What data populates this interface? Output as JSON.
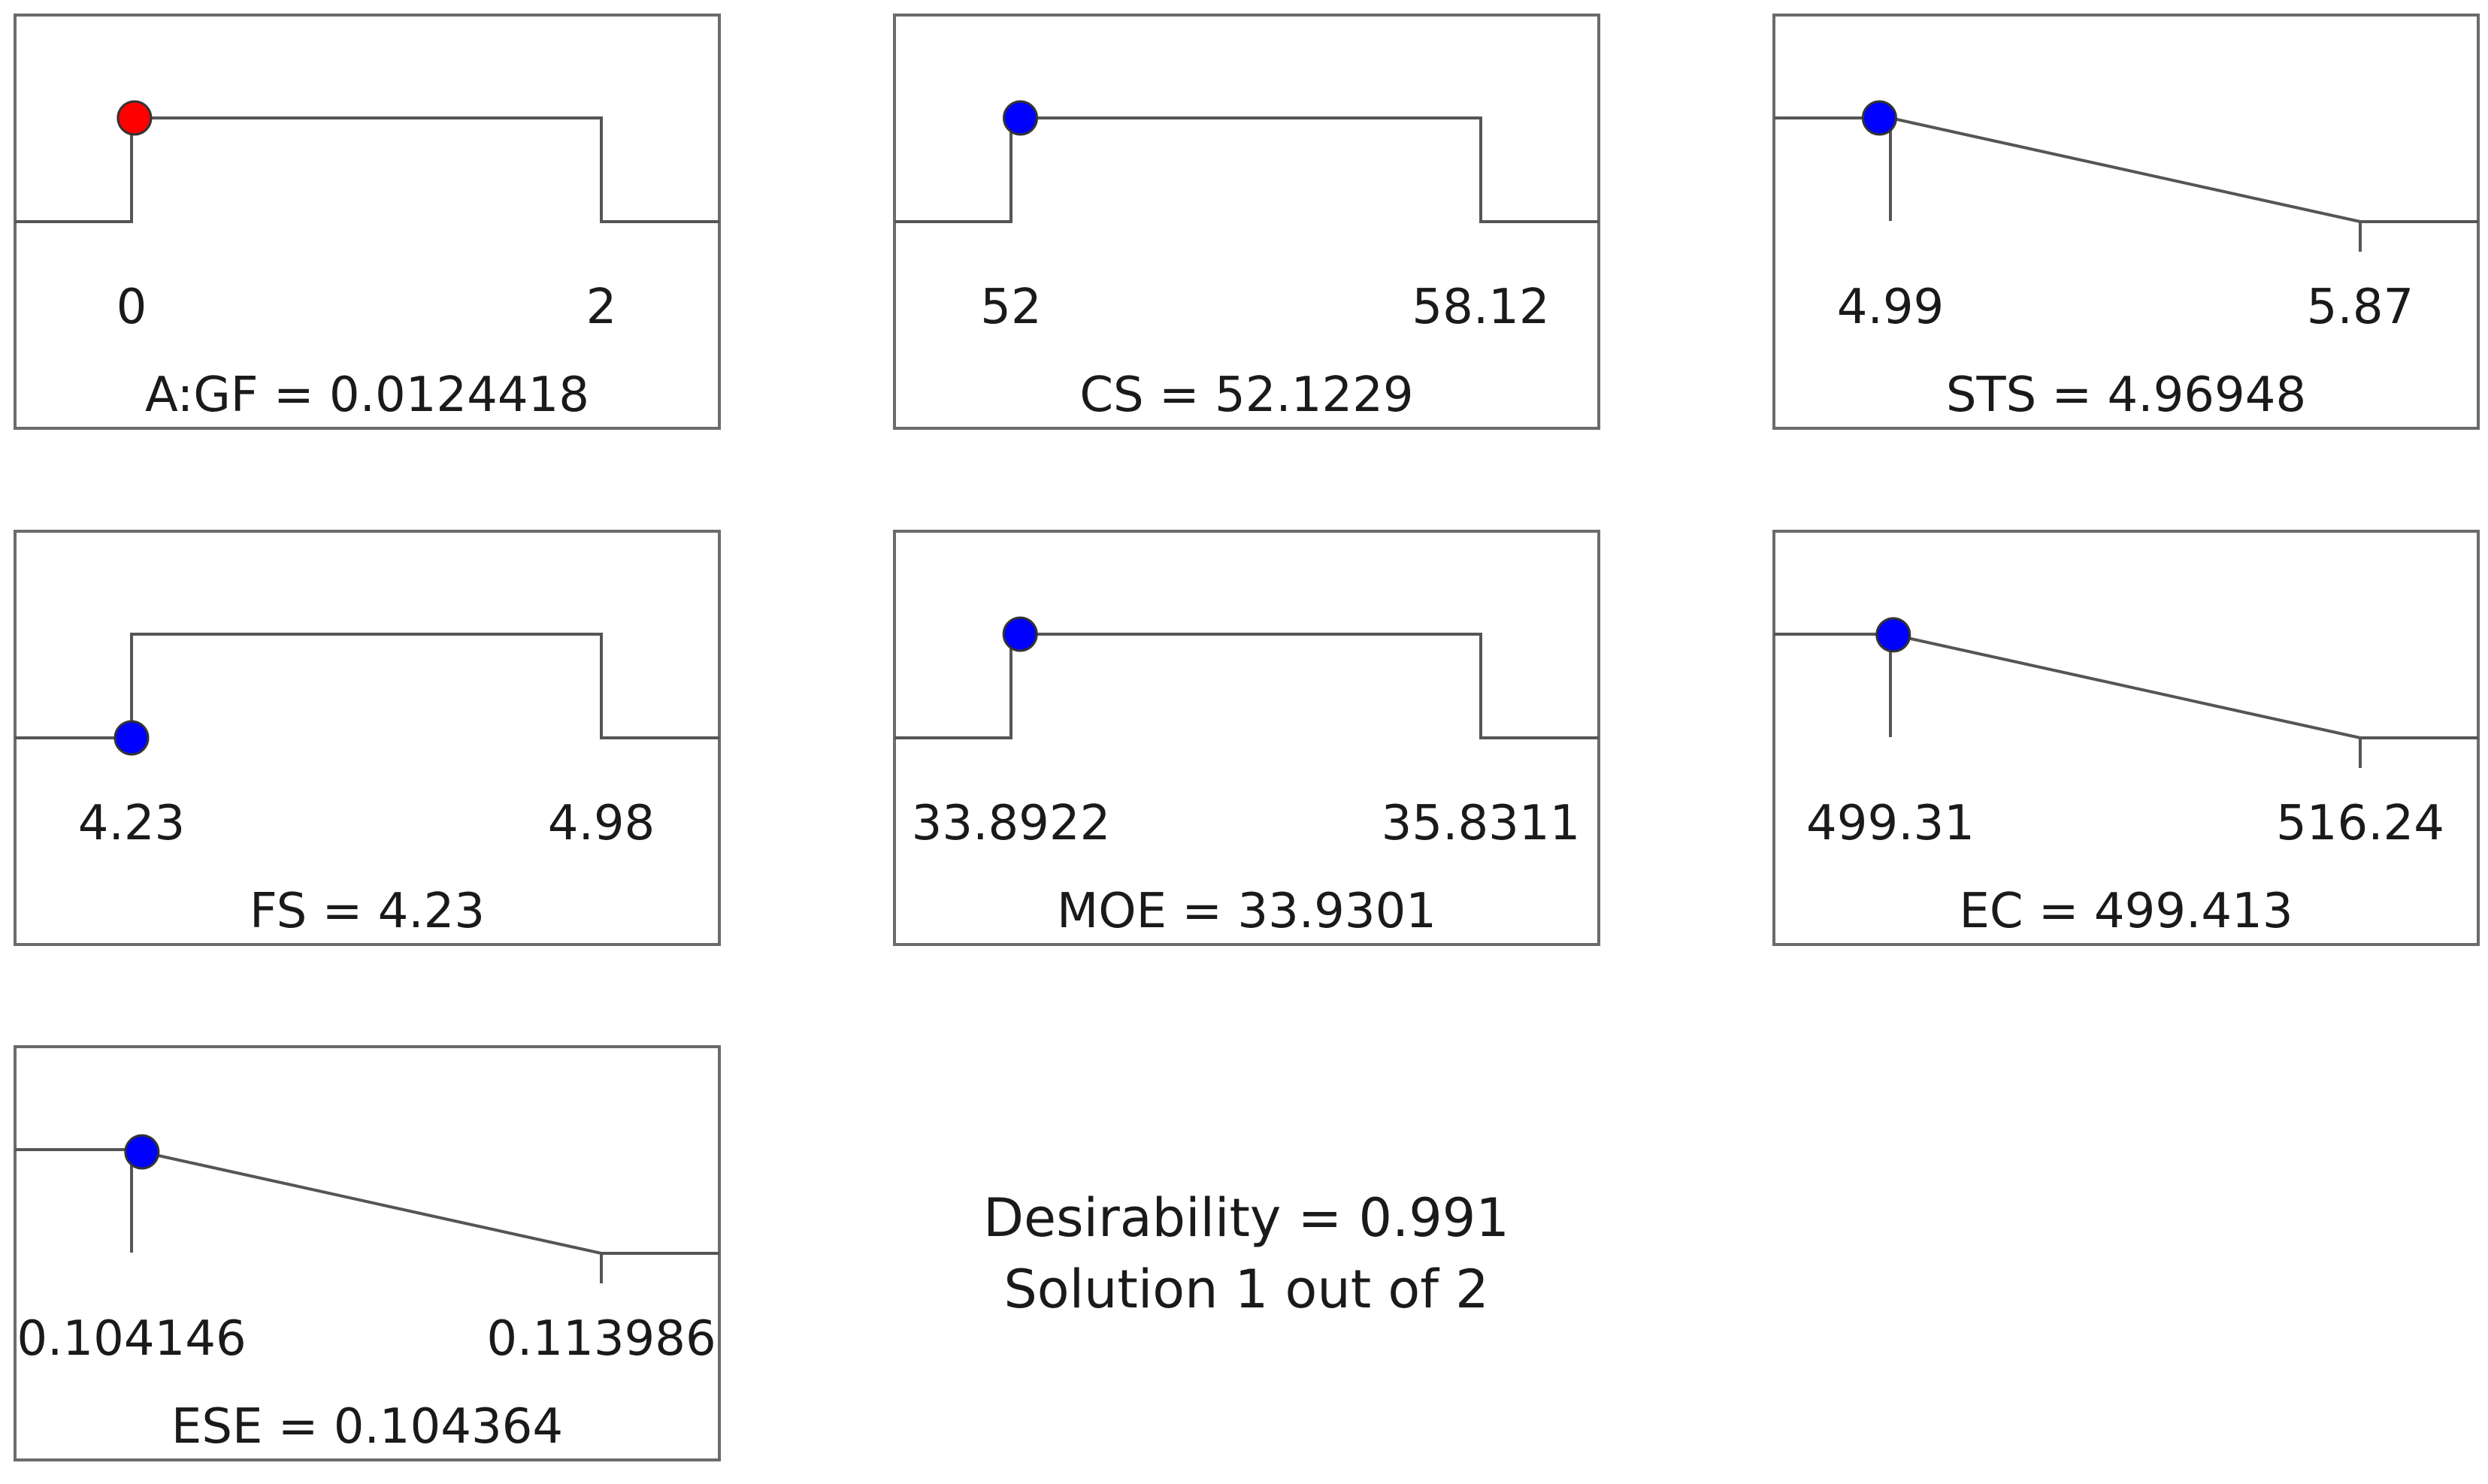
{
  "chart_data": {
    "type": "desirability-ramps",
    "panels": [
      {
        "name": "A:GF",
        "goal": "in range",
        "low": 0,
        "high": 2,
        "low_label": "0",
        "high_label": "2",
        "value": 0.0124418,
        "readout": "A:GF = 0.0124418",
        "marker_color": "#ff0000"
      },
      {
        "name": "CS",
        "goal": "in range",
        "low": 52,
        "high": 58.12,
        "low_label": "52",
        "high_label": "58.12",
        "value": 52.1229,
        "readout": "CS = 52.1229",
        "marker_color": "#0000ff"
      },
      {
        "name": "STS",
        "goal": "minimize",
        "low": 4.99,
        "high": 5.87,
        "low_label": "4.99",
        "high_label": "5.87",
        "value": 4.96948,
        "readout": "STS = 4.96948",
        "marker_color": "#0000ff"
      },
      {
        "name": "FS",
        "goal": "in range",
        "low": 4.23,
        "high": 4.98,
        "low_label": "4.23",
        "high_label": "4.98",
        "value": 4.23,
        "readout": "FS = 4.23",
        "marker_color": "#0000ff"
      },
      {
        "name": "MOE",
        "goal": "in range",
        "low": 33.8922,
        "high": 35.8311,
        "low_label": "33.8922",
        "high_label": "35.8311",
        "value": 33.9301,
        "readout": "MOE = 33.9301",
        "marker_color": "#0000ff"
      },
      {
        "name": "EC",
        "goal": "minimize",
        "low": 499.31,
        "high": 516.24,
        "low_label": "499.31",
        "high_label": "516.24",
        "value": 499.413,
        "readout": "EC = 499.413",
        "marker_color": "#0000ff"
      },
      {
        "name": "ESE",
        "goal": "minimize",
        "low": 0.104146,
        "high": 0.113986,
        "low_label": "0.104146",
        "high_label": "0.113986",
        "value": 0.104364,
        "readout": "ESE = 0.104364",
        "marker_color": "#0000ff"
      }
    ],
    "desirability": "Desirability = 0.991",
    "solution": "Solution 1 out of 2"
  }
}
